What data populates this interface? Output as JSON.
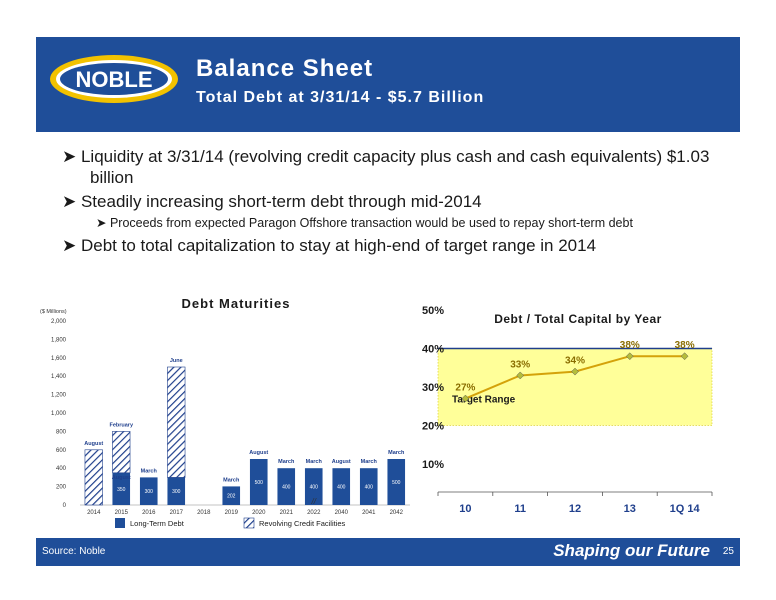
{
  "header": {
    "title": "Balance Sheet",
    "subtitle": "Total Debt at 3/31/14 - $5.7 Billion",
    "logo_text": "NOBLE"
  },
  "bullets": {
    "b1": "Liquidity at 3/31/14 (revolving credit capacity plus cash and cash equivalents) $1.03 billion",
    "b2": "Steadily increasing short-term debt through mid-2014",
    "b2_sub": "Proceeds from expected Paragon Offshore transaction would be used to repay short-term debt",
    "b3": "Debt to total capitalization to stay at high-end of target range in 2014"
  },
  "footer": {
    "source": "Source: Noble",
    "tagline": "Shaping our Future",
    "page": "25"
  },
  "colors": {
    "brand_blue": "#1f4e99",
    "target_band": "#ffff99",
    "line": "#d4a20a"
  },
  "chart_data": [
    {
      "type": "bar",
      "title": "Debt Maturities",
      "ylabel": "($ Millions)",
      "ylim": [
        0,
        2000
      ],
      "yticks": [
        0,
        200,
        400,
        600,
        800,
        1000,
        1200,
        1400,
        1600,
        1800,
        2000
      ],
      "ytick_labels": [
        "0",
        "200",
        "400",
        "600",
        "800",
        "1,000",
        "1,200",
        "1,400",
        "1,600",
        "1,800",
        "2,000"
      ],
      "categories": [
        "2014",
        "2015",
        "2016",
        "2017",
        "2018",
        "2019",
        "2020",
        "2021",
        "2022",
        "2040",
        "2041",
        "2042"
      ],
      "axis_break_label": "//",
      "series": [
        {
          "name": "Long-Term Debt",
          "values": [
            0,
            350,
            300,
            300,
            0,
            202,
            500,
            400,
            400,
            400,
            400,
            500
          ],
          "labels": [
            "",
            "350",
            "300",
            "300",
            "",
            "202",
            "500",
            "400",
            "400",
            "400",
            "400",
            "500"
          ]
        },
        {
          "name": "Revolving Credit Facilities",
          "values": [
            600,
            450,
            0,
            1200,
            0,
            0,
            0,
            0,
            0,
            0,
            0,
            0
          ]
        }
      ],
      "month_labels": [
        "August",
        "February",
        "March",
        "June",
        "",
        "March",
        "August",
        "March",
        "March",
        "August",
        "March",
        "March"
      ],
      "extra_month_label": {
        "index": 1,
        "text": "August"
      },
      "legend": "bottom"
    },
    {
      "type": "line",
      "title": "Debt / Total Capital by Year",
      "categories": [
        "10",
        "11",
        "12",
        "13",
        "1Q 14"
      ],
      "values": [
        27,
        33,
        34,
        38,
        38
      ],
      "value_labels": [
        "27%",
        "33%",
        "34%",
        "38%",
        "38%"
      ],
      "ylim": [
        10,
        50
      ],
      "yticks": [
        10,
        20,
        30,
        40,
        50
      ],
      "ytick_labels": [
        "10%",
        "20%",
        "30%",
        "40%",
        "50%"
      ],
      "target_range": [
        20,
        40
      ],
      "target_label": "Target Range"
    }
  ]
}
